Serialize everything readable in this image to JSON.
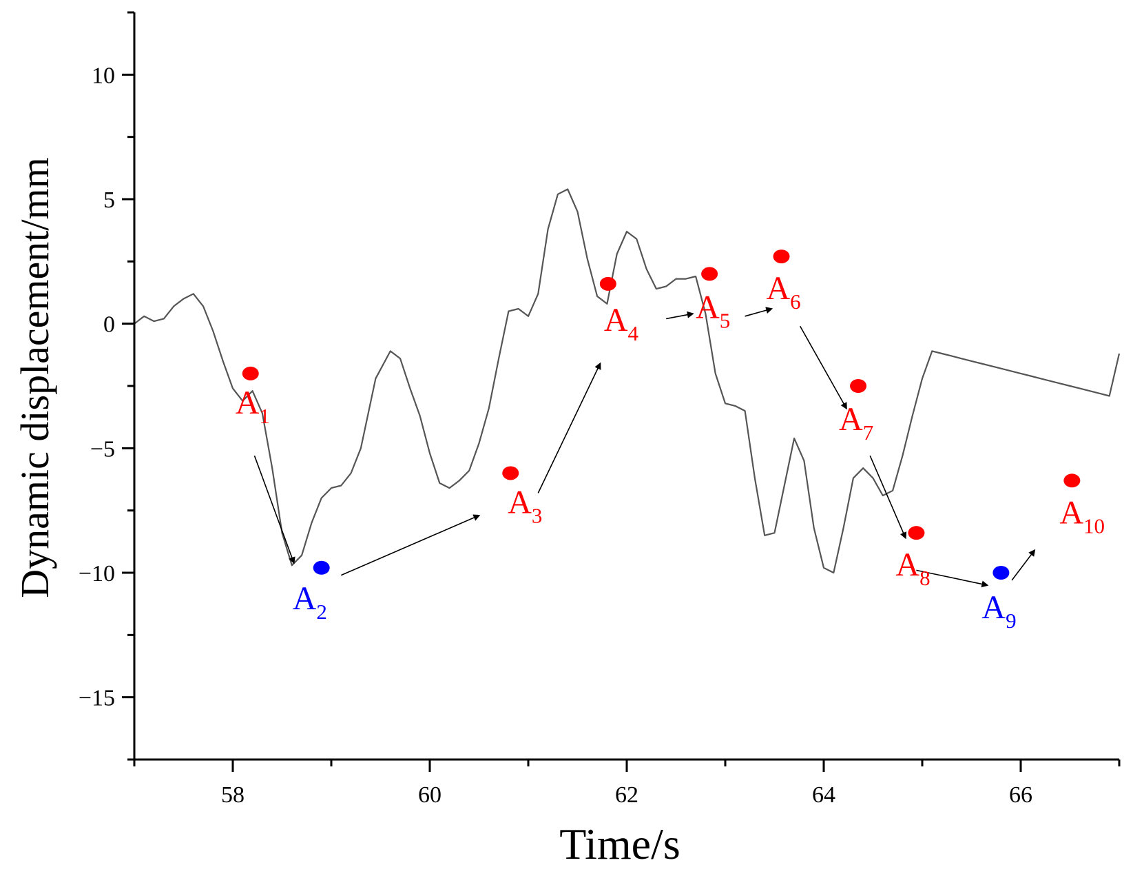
{
  "chart_data": {
    "type": "line",
    "xlabel": "Time/s",
    "ylabel": "Dynamic displacement/mm",
    "xlim": [
      57.0,
      67.0
    ],
    "ylim": [
      -17.5,
      12.5
    ],
    "x_ticks": [
      58,
      60,
      62,
      64,
      66
    ],
    "x_tick_labels": [
      "58",
      "60",
      "62",
      "64",
      "66"
    ],
    "y_ticks": [
      -15,
      -10,
      -5,
      0,
      5,
      10
    ],
    "y_tick_labels": [
      "−15",
      "−10",
      "−5",
      "0",
      "5",
      "10"
    ],
    "colors": {
      "line": "#555555",
      "red": "#ff0000",
      "blue": "#0000ff",
      "arrow": "#000000"
    },
    "series": [
      {
        "name": "Dynamic displacement",
        "x": [
          57.0,
          57.1,
          57.2,
          57.3,
          57.4,
          57.5,
          57.6,
          57.7,
          57.8,
          57.9,
          58.0,
          58.1,
          58.2,
          58.3,
          58.4,
          58.5,
          58.6,
          58.7,
          58.8,
          58.9,
          59.0,
          59.1,
          59.2,
          59.3,
          59.45,
          59.6,
          59.7,
          59.8,
          59.9,
          60.0,
          60.1,
          60.2,
          60.3,
          60.4,
          60.5,
          60.6,
          60.7,
          60.8,
          60.9,
          61.0,
          61.1,
          61.2,
          61.3,
          61.4,
          61.5,
          61.6,
          61.7,
          61.8,
          61.9,
          62.0,
          62.1,
          62.2,
          62.3,
          62.4,
          62.5,
          62.6,
          62.7,
          62.8,
          62.9,
          63.0,
          63.1,
          63.2,
          63.3,
          63.4,
          63.5,
          63.6,
          63.7,
          63.8,
          63.9,
          64.0,
          64.1,
          64.2,
          64.3,
          64.4,
          64.5,
          64.6,
          64.7,
          64.8,
          64.9,
          65.0,
          65.1,
          65.2,
          65.3,
          65.4,
          65.5,
          65.6,
          65.7,
          65.8,
          65.9,
          66.0,
          66.1,
          66.2,
          66.3,
          66.4,
          66.5,
          66.6,
          66.7,
          66.8,
          66.9,
          67.0
        ],
        "y": [
          0.0,
          0.3,
          0.1,
          0.2,
          0.7,
          1.0,
          1.2,
          0.7,
          -0.3,
          -1.5,
          -2.6,
          -3.1,
          -2.7,
          -3.6,
          -5.8,
          -8.4,
          -9.7,
          -9.3,
          -8.0,
          -7.0,
          -6.6,
          -6.5,
          -6.0,
          -5.0,
          -2.2,
          -1.1,
          -1.4,
          -2.6,
          -3.7,
          -5.2,
          -6.4,
          -6.6,
          -6.3,
          -5.9,
          -4.8,
          -3.4,
          -1.4,
          0.5,
          0.6,
          0.3,
          1.2,
          3.8,
          5.2,
          5.4,
          4.5,
          2.6,
          1.1,
          0.8,
          2.8,
          3.7,
          3.4,
          2.2,
          1.4,
          1.5,
          1.8,
          1.8,
          1.9,
          0.4,
          -2.0,
          -3.2,
          -3.3,
          -3.5,
          -6.2,
          -8.5,
          -8.4,
          -6.5,
          -4.6,
          -5.5,
          -8.2,
          -9.8,
          -10.0,
          -8.2,
          -6.2,
          -5.8,
          -6.2,
          -6.9,
          -6.7,
          -5.3,
          -3.7,
          -2.2,
          -1.1,
          -1.2,
          -1.3,
          -1.4,
          -1.5,
          -1.6,
          -1.7,
          -1.8,
          -1.9,
          -2.0,
          -2.1,
          -2.2,
          -2.3,
          -2.4,
          -2.5,
          -2.6,
          -2.7,
          -2.8,
          -2.9,
          -1.2
        ]
      }
    ],
    "points": [
      {
        "id": "A1",
        "letter": "A",
        "sub": "1",
        "color": "red",
        "x": 58.18,
        "y": -2.0
      },
      {
        "id": "A2",
        "letter": "A",
        "sub": "2",
        "color": "blue",
        "x": 58.9,
        "y": -9.8
      },
      {
        "id": "A3",
        "letter": "A",
        "sub": "3",
        "color": "red",
        "x": 60.82,
        "y": -6.0
      },
      {
        "id": "A4",
        "letter": "A",
        "sub": "4",
        "color": "red",
        "x": 61.81,
        "y": 1.6
      },
      {
        "id": "A5",
        "letter": "A",
        "sub": "5",
        "color": "red",
        "x": 62.84,
        "y": 2.0
      },
      {
        "id": "A6",
        "letter": "A",
        "sub": "6",
        "color": "red",
        "x": 63.57,
        "y": 2.7
      },
      {
        "id": "A7",
        "letter": "A",
        "sub": "7",
        "color": "red",
        "x": 64.35,
        "y": -2.5
      },
      {
        "id": "A8",
        "letter": "A",
        "sub": "8",
        "color": "red",
        "x": 64.94,
        "y": -8.4
      },
      {
        "id": "A9",
        "letter": "A",
        "sub": "9",
        "color": "blue",
        "x": 65.8,
        "y": -10.0
      },
      {
        "id": "A10",
        "letter": "A",
        "sub": "10",
        "color": "red",
        "x": 66.52,
        "y": -6.3
      }
    ],
    "arrows": [
      {
        "from": [
          58.22,
          -5.3
        ],
        "to": [
          58.62,
          -9.6
        ]
      },
      {
        "from": [
          59.1,
          -10.1
        ],
        "to": [
          60.5,
          -7.7
        ]
      },
      {
        "from": [
          61.1,
          -6.8
        ],
        "to": [
          61.73,
          -1.6
        ]
      },
      {
        "from": [
          62.4,
          0.2
        ],
        "to": [
          62.67,
          0.4
        ]
      },
      {
        "from": [
          63.2,
          0.3
        ],
        "to": [
          63.47,
          0.6
        ]
      },
      {
        "from": [
          63.76,
          -0.1
        ],
        "to": [
          64.23,
          -3.4
        ]
      },
      {
        "from": [
          64.47,
          -5.3
        ],
        "to": [
          64.83,
          -8.6
        ]
      },
      {
        "from": [
          64.94,
          -9.9
        ],
        "to": [
          65.66,
          -10.5
        ]
      },
      {
        "from": [
          65.91,
          -10.3
        ],
        "to": [
          66.14,
          -9.1
        ]
      }
    ]
  }
}
